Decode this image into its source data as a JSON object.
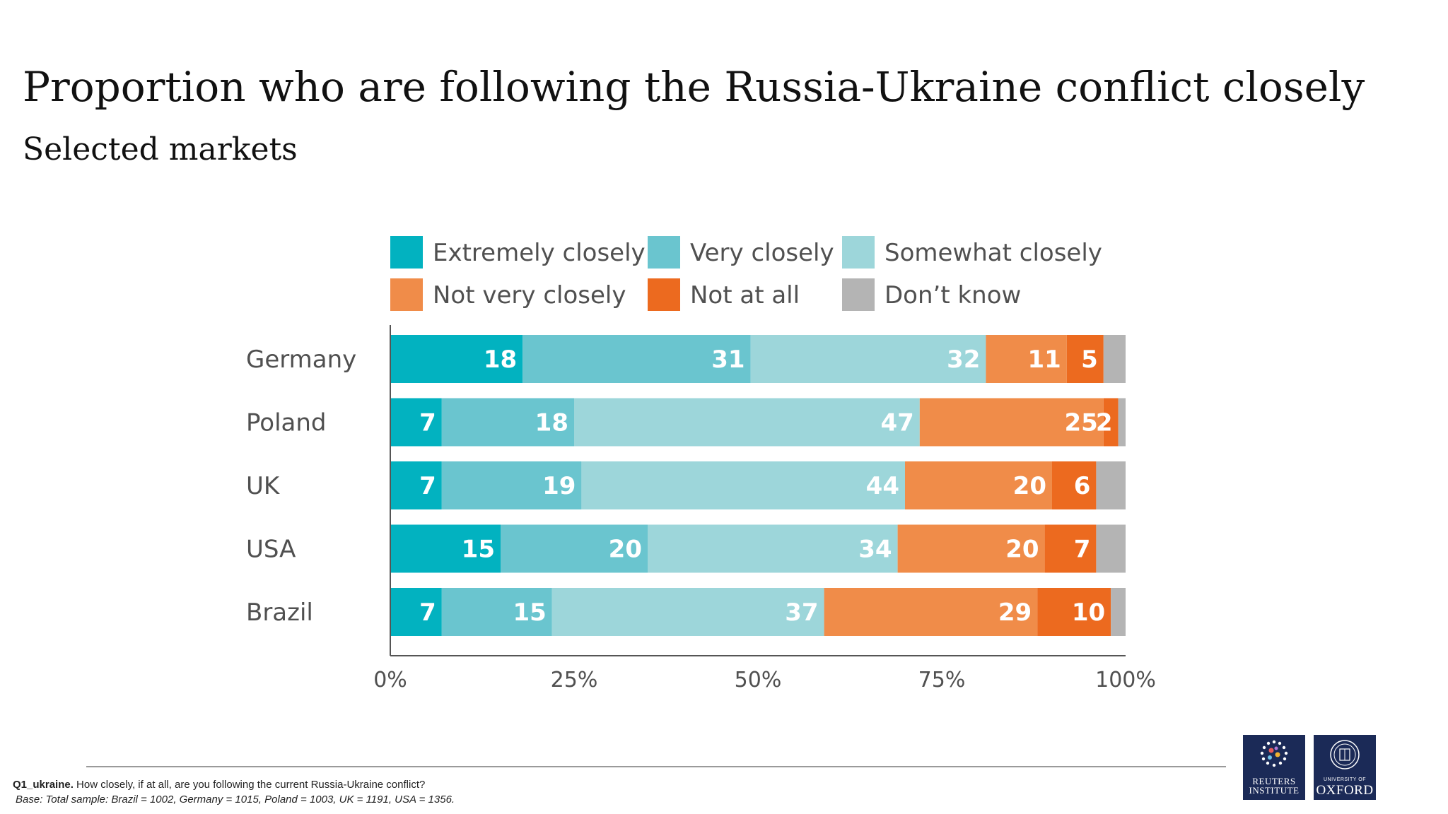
{
  "title": "Proportion who are following the Russia-Ukraine conflict closely",
  "subtitle": "Selected markets",
  "chart_data": {
    "type": "bar",
    "orientation": "horizontal",
    "stacked": true,
    "categories": [
      "Germany",
      "Poland",
      "UK",
      "USA",
      "Brazil"
    ],
    "series": [
      {
        "name": "Extremely closely",
        "color": "#02b2c0",
        "values": [
          18,
          7,
          7,
          15,
          7
        ]
      },
      {
        "name": "Very closely",
        "color": "#6ac5cf",
        "values": [
          31,
          18,
          19,
          20,
          15
        ]
      },
      {
        "name": "Somewhat closely",
        "color": "#9dd6da",
        "values": [
          32,
          47,
          44,
          34,
          37
        ]
      },
      {
        "name": "Not very closely",
        "color": "#f08c49",
        "values": [
          11,
          25,
          20,
          20,
          29
        ]
      },
      {
        "name": "Not at all",
        "color": "#ec6a1f",
        "values": [
          5,
          2,
          6,
          7,
          10
        ]
      },
      {
        "name": "Don’t know",
        "color": "#b4b4b4",
        "values": [
          3,
          1,
          4,
          4,
          2
        ]
      }
    ],
    "value_labels_shown_for_series": [
      0,
      1,
      2,
      3,
      4
    ],
    "xlim": [
      0,
      100
    ],
    "x_ticks": [
      0,
      25,
      50,
      75,
      100
    ],
    "x_tick_labels": [
      "0%",
      "25%",
      "50%",
      "75%",
      "100%"
    ],
    "legend_position": "top",
    "grid": false
  },
  "footer": {
    "question_code": "Q1_ukraine.",
    "question_text": " How closely, if at all, are you following the current Russia-Ukraine conflict?",
    "base": "Base: Total sample: Brazil = 1002, Germany = 1015, Poland = 1003, UK = 1191, USA = 1356."
  },
  "logos": {
    "reuters": "REUTERS INSTITUTE",
    "oxford_small": "UNIVERSITY OF",
    "oxford_big": "OXFORD"
  }
}
